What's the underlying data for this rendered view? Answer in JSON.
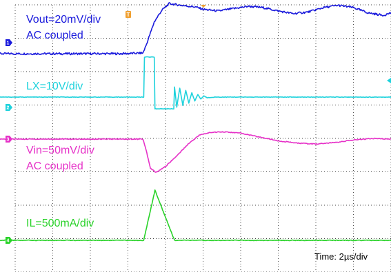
{
  "chart_data": {
    "type": "line",
    "title": "",
    "xlabel": "",
    "ylabel": "",
    "grid": true,
    "timebase": "Time: 2µs/div",
    "x_divisions": 10,
    "y_divisions": 8,
    "series": [
      {
        "id": "vout",
        "channel_marker": "1",
        "label_lines": [
          "Vout=20mV/div",
          "AC coupled"
        ],
        "color": "#1a1adc",
        "points": [
          [
            -6.0,
            0.0
          ],
          [
            -4.0,
            0.0
          ],
          [
            -2.2,
            0.0
          ],
          [
            -1.6,
            0.02
          ],
          [
            -1.5,
            0.3
          ],
          [
            -1.3,
            0.95
          ],
          [
            -1.1,
            1.3
          ],
          [
            -0.9,
            1.5
          ],
          [
            -0.6,
            1.45
          ],
          [
            -0.2,
            1.4
          ],
          [
            0.0,
            1.33
          ],
          [
            0.4,
            1.28
          ],
          [
            0.8,
            1.35
          ],
          [
            1.2,
            1.42
          ],
          [
            1.6,
            1.38
          ],
          [
            2.0,
            1.28
          ],
          [
            2.4,
            1.2
          ],
          [
            2.8,
            1.25
          ],
          [
            3.2,
            1.38
          ],
          [
            3.6,
            1.45
          ],
          [
            4.0,
            1.38
          ],
          [
            4.4,
            1.22
          ],
          [
            4.8,
            1.15
          ],
          [
            5.2,
            1.3
          ],
          [
            5.6,
            1.44
          ],
          [
            6.0,
            1.4
          ]
        ]
      },
      {
        "id": "lx",
        "channel_marker": "2",
        "label_lines": [
          "LX=10V/div"
        ],
        "color": "#1ed2dc",
        "points": [
          [
            -6.0,
            0.0
          ],
          [
            -4.0,
            0.0
          ],
          [
            -1.58,
            0.0
          ],
          [
            -1.56,
            1.2
          ],
          [
            -1.3,
            1.2
          ],
          [
            -1.28,
            -0.35
          ],
          [
            -0.78,
            -0.35
          ],
          [
            -0.76,
            0.3
          ],
          [
            -0.7,
            -0.3
          ],
          [
            -0.62,
            0.27
          ],
          [
            -0.54,
            -0.25
          ],
          [
            -0.46,
            0.2
          ],
          [
            -0.38,
            -0.18
          ],
          [
            -0.3,
            0.14
          ],
          [
            -0.22,
            -0.12
          ],
          [
            -0.14,
            0.08
          ],
          [
            -0.06,
            -0.06
          ],
          [
            0.02,
            0.04
          ],
          [
            0.1,
            -0.02
          ],
          [
            0.3,
            0.0
          ],
          [
            6.0,
            0.0
          ]
        ]
      },
      {
        "id": "vin",
        "channel_marker": "3",
        "label_lines": [
          "Vin=50mV/div",
          "AC coupled"
        ],
        "color": "#e632c8",
        "points": [
          [
            -6.0,
            0.0
          ],
          [
            -4.0,
            0.0
          ],
          [
            -1.6,
            0.0
          ],
          [
            -1.5,
            -0.4
          ],
          [
            -1.4,
            -0.88
          ],
          [
            -1.25,
            -1.0
          ],
          [
            -1.0,
            -0.82
          ],
          [
            -0.7,
            -0.5
          ],
          [
            -0.4,
            -0.15
          ],
          [
            -0.1,
            0.12
          ],
          [
            0.2,
            0.2
          ],
          [
            0.5,
            0.22
          ],
          [
            1.0,
            0.18
          ],
          [
            1.5,
            0.06
          ],
          [
            2.0,
            -0.05
          ],
          [
            2.5,
            -0.12
          ],
          [
            3.0,
            -0.15
          ],
          [
            3.5,
            -0.1
          ],
          [
            4.0,
            -0.03
          ],
          [
            4.5,
            0.02
          ],
          [
            5.0,
            0.0
          ],
          [
            6.0,
            0.0
          ]
        ]
      },
      {
        "id": "il",
        "channel_marker": "4",
        "label_lines": [
          "IL=500mA/div"
        ],
        "color": "#28d228",
        "points": [
          [
            -6.0,
            0.0
          ],
          [
            -4.0,
            0.0
          ],
          [
            -1.58,
            0.0
          ],
          [
            -1.28,
            1.5
          ],
          [
            -0.76,
            0.0
          ],
          [
            6.0,
            0.0
          ]
        ]
      }
    ]
  }
}
